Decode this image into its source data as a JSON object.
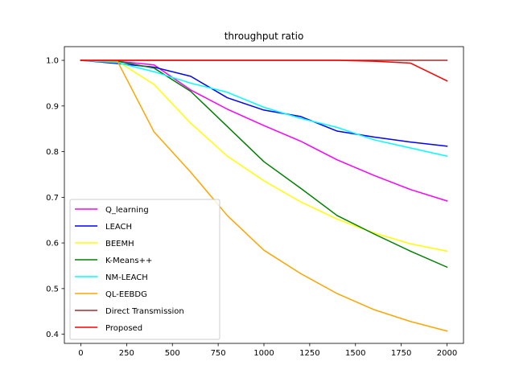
{
  "chart_data": {
    "type": "line",
    "title": "throughput ratio",
    "xlabel": "",
    "ylabel": "",
    "xlim": [
      -90,
      2090
    ],
    "ylim": [
      0.38,
      1.03
    ],
    "xticks": [
      0,
      250,
      500,
      750,
      1000,
      1250,
      1500,
      1750,
      2000
    ],
    "xtick_labels": [
      "0",
      "250",
      "500",
      "750",
      "1000",
      "1250",
      "1500",
      "1750",
      "2000"
    ],
    "yticks": [
      0.4,
      0.5,
      0.6,
      0.7,
      0.8,
      0.9,
      1.0
    ],
    "ytick_labels": [
      "0.4",
      "0.5",
      "0.6",
      "0.7",
      "0.8",
      "0.9",
      "1.0"
    ],
    "grid": false,
    "legend_position": "lower-left",
    "series": [
      {
        "name": "Q_learning",
        "color": "#ff00ff",
        "x": [
          0,
          200,
          400,
          600,
          800,
          1000,
          1200,
          1400,
          1600,
          1800,
          2000
        ],
        "y": [
          1.0,
          0.998,
          0.99,
          0.935,
          0.893,
          0.857,
          0.823,
          0.782,
          0.748,
          0.717,
          0.692
        ]
      },
      {
        "name": "LEACH",
        "color": "#0000ff",
        "x": [
          0,
          200,
          400,
          600,
          800,
          1000,
          1200,
          1400,
          1600,
          1800,
          2000
        ],
        "y": [
          1.0,
          0.993,
          0.985,
          0.965,
          0.918,
          0.891,
          0.877,
          0.845,
          0.832,
          0.821,
          0.812
        ]
      },
      {
        "name": "BEEMH",
        "color": "#ffff00",
        "x": [
          0,
          200,
          400,
          600,
          800,
          1000,
          1200,
          1400,
          1600,
          1800,
          2000
        ],
        "y": [
          1.0,
          0.998,
          0.947,
          0.862,
          0.79,
          0.736,
          0.69,
          0.652,
          0.622,
          0.598,
          0.582
        ]
      },
      {
        "name": "K-Means++",
        "color": "#008000",
        "x": [
          0,
          200,
          400,
          600,
          800,
          1000,
          1200,
          1400,
          1600,
          1800,
          2000
        ],
        "y": [
          1.0,
          0.998,
          0.983,
          0.932,
          0.855,
          0.778,
          0.72,
          0.66,
          0.62,
          0.582,
          0.547
        ]
      },
      {
        "name": "NM-LEACH",
        "color": "#00ffff",
        "x": [
          0,
          200,
          400,
          600,
          800,
          1000,
          1200,
          1400,
          1600,
          1800,
          2000
        ],
        "y": [
          1.0,
          0.995,
          0.975,
          0.95,
          0.93,
          0.897,
          0.873,
          0.853,
          0.826,
          0.808,
          0.79
        ]
      },
      {
        "name": "QL-EEBDG",
        "color": "#ffa500",
        "x": [
          0,
          200,
          400,
          600,
          800,
          1000,
          1200,
          1400,
          1600,
          1800,
          2000
        ],
        "y": [
          1.0,
          0.998,
          0.843,
          0.755,
          0.66,
          0.584,
          0.533,
          0.489,
          0.454,
          0.428,
          0.407
        ]
      },
      {
        "name": "Direct Transmission",
        "color": "#a52a2a",
        "x": [
          0,
          200,
          400,
          600,
          800,
          1000,
          1200,
          1400,
          1600,
          1800,
          2000
        ],
        "y": [
          1.0,
          1.0,
          1.0,
          1.0,
          1.0,
          1.0,
          1.0,
          1.0,
          1.0,
          1.0,
          1.0
        ]
      },
      {
        "name": "Proposed",
        "color": "#ff0000",
        "x": [
          0,
          200,
          400,
          600,
          800,
          1000,
          1200,
          1400,
          1600,
          1800,
          2000
        ],
        "y": [
          1.0,
          1.0,
          1.0,
          1.0,
          1.0,
          1.0,
          1.0,
          1.0,
          0.998,
          0.994,
          0.955
        ]
      }
    ]
  }
}
